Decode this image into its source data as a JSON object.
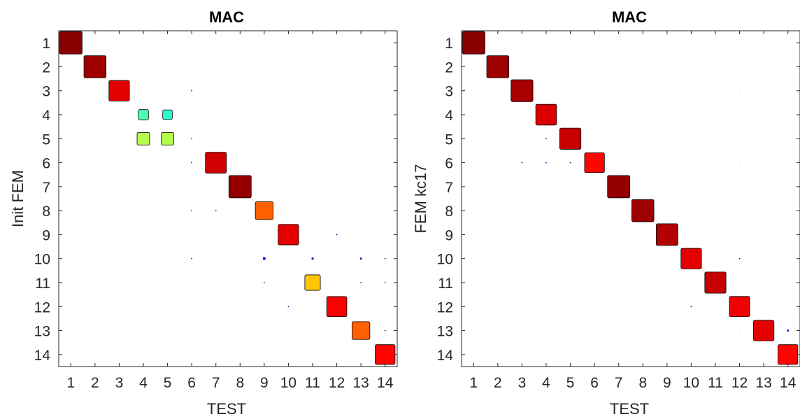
{
  "chart_data": [
    {
      "type": "heatmap",
      "title": "MAC",
      "xlabel": "TEST",
      "ylabel": "Init FEM",
      "x_ticks": [
        "1",
        "2",
        "3",
        "4",
        "5",
        "6",
        "7",
        "8",
        "9",
        "10",
        "11",
        "12",
        "13",
        "14"
      ],
      "y_ticks": [
        "1",
        "2",
        "3",
        "4",
        "5",
        "6",
        "7",
        "8",
        "9",
        "10",
        "11",
        "12",
        "13",
        "14"
      ],
      "value_range": [
        0,
        1
      ],
      "encoding": "square size and color proportional to MAC value (0-1)",
      "grid": false,
      "cells": [
        {
          "x": 1,
          "y": 1,
          "value": 0.99
        },
        {
          "x": 2,
          "y": 2,
          "value": 0.97
        },
        {
          "x": 3,
          "y": 3,
          "value": 0.9
        },
        {
          "x": 4,
          "y": 4,
          "value": 0.45
        },
        {
          "x": 5,
          "y": 4,
          "value": 0.42
        },
        {
          "x": 4,
          "y": 5,
          "value": 0.55
        },
        {
          "x": 5,
          "y": 5,
          "value": 0.55
        },
        {
          "x": 6,
          "y": 3,
          "value": 0.03
        },
        {
          "x": 6,
          "y": 5,
          "value": 0.01
        },
        {
          "x": 6,
          "y": 6,
          "value": 0.01
        },
        {
          "x": 7,
          "y": 6,
          "value": 0.92
        },
        {
          "x": 8,
          "y": 7,
          "value": 0.98
        },
        {
          "x": 6,
          "y": 8,
          "value": 0.05
        },
        {
          "x": 7,
          "y": 8,
          "value": 0.01
        },
        {
          "x": 9,
          "y": 8,
          "value": 0.78
        },
        {
          "x": 10,
          "y": 9,
          "value": 0.9
        },
        {
          "x": 12,
          "y": 9,
          "value": 0.01
        },
        {
          "x": 6,
          "y": 10,
          "value": 0.01
        },
        {
          "x": 9,
          "y": 10,
          "value": 0.11
        },
        {
          "x": 11,
          "y": 10,
          "value": 0.09
        },
        {
          "x": 13,
          "y": 10,
          "value": 0.08
        },
        {
          "x": 14,
          "y": 10,
          "value": 0.01
        },
        {
          "x": 9,
          "y": 11,
          "value": 0.02
        },
        {
          "x": 11,
          "y": 11,
          "value": 0.68
        },
        {
          "x": 13,
          "y": 11,
          "value": 0.03
        },
        {
          "x": 14,
          "y": 11,
          "value": 0.01
        },
        {
          "x": 10,
          "y": 12,
          "value": 0.01
        },
        {
          "x": 12,
          "y": 12,
          "value": 0.88
        },
        {
          "x": 13,
          "y": 13,
          "value": 0.78
        },
        {
          "x": 14,
          "y": 13,
          "value": 0.01
        },
        {
          "x": 14,
          "y": 14,
          "value": 0.87
        }
      ]
    },
    {
      "type": "heatmap",
      "title": "MAC",
      "xlabel": "TEST",
      "ylabel": "FEM kc17",
      "x_ticks": [
        "1",
        "2",
        "3",
        "4",
        "5",
        "6",
        "7",
        "8",
        "9",
        "10",
        "11",
        "12",
        "13",
        "14"
      ],
      "y_ticks": [
        "1",
        "2",
        "3",
        "4",
        "5",
        "6",
        "7",
        "8",
        "9",
        "10",
        "11",
        "12",
        "13",
        "14"
      ],
      "value_range": [
        0,
        1
      ],
      "encoding": "square size and color proportional to MAC value (0-1)",
      "grid": false,
      "cells": [
        {
          "x": 1,
          "y": 1,
          "value": 0.99
        },
        {
          "x": 2,
          "y": 2,
          "value": 0.97
        },
        {
          "x": 3,
          "y": 3,
          "value": 0.96
        },
        {
          "x": 4,
          "y": 4,
          "value": 0.91
        },
        {
          "x": 4,
          "y": 5,
          "value": 0.01
        },
        {
          "x": 5,
          "y": 5,
          "value": 0.93
        },
        {
          "x": 3,
          "y": 6,
          "value": 0.01
        },
        {
          "x": 4,
          "y": 6,
          "value": 0.05
        },
        {
          "x": 5,
          "y": 6,
          "value": 0.01
        },
        {
          "x": 6,
          "y": 6,
          "value": 0.87
        },
        {
          "x": 7,
          "y": 7,
          "value": 0.98
        },
        {
          "x": 8,
          "y": 8,
          "value": 0.97
        },
        {
          "x": 9,
          "y": 9,
          "value": 0.95
        },
        {
          "x": 10,
          "y": 10,
          "value": 0.9
        },
        {
          "x": 12,
          "y": 10,
          "value": 0.01
        },
        {
          "x": 11,
          "y": 11,
          "value": 0.93
        },
        {
          "x": 10,
          "y": 12,
          "value": 0.01
        },
        {
          "x": 12,
          "y": 12,
          "value": 0.89
        },
        {
          "x": 13,
          "y": 13,
          "value": 0.9
        },
        {
          "x": 14,
          "y": 13,
          "value": 0.08
        },
        {
          "x": 14,
          "y": 14,
          "value": 0.87
        }
      ]
    }
  ]
}
